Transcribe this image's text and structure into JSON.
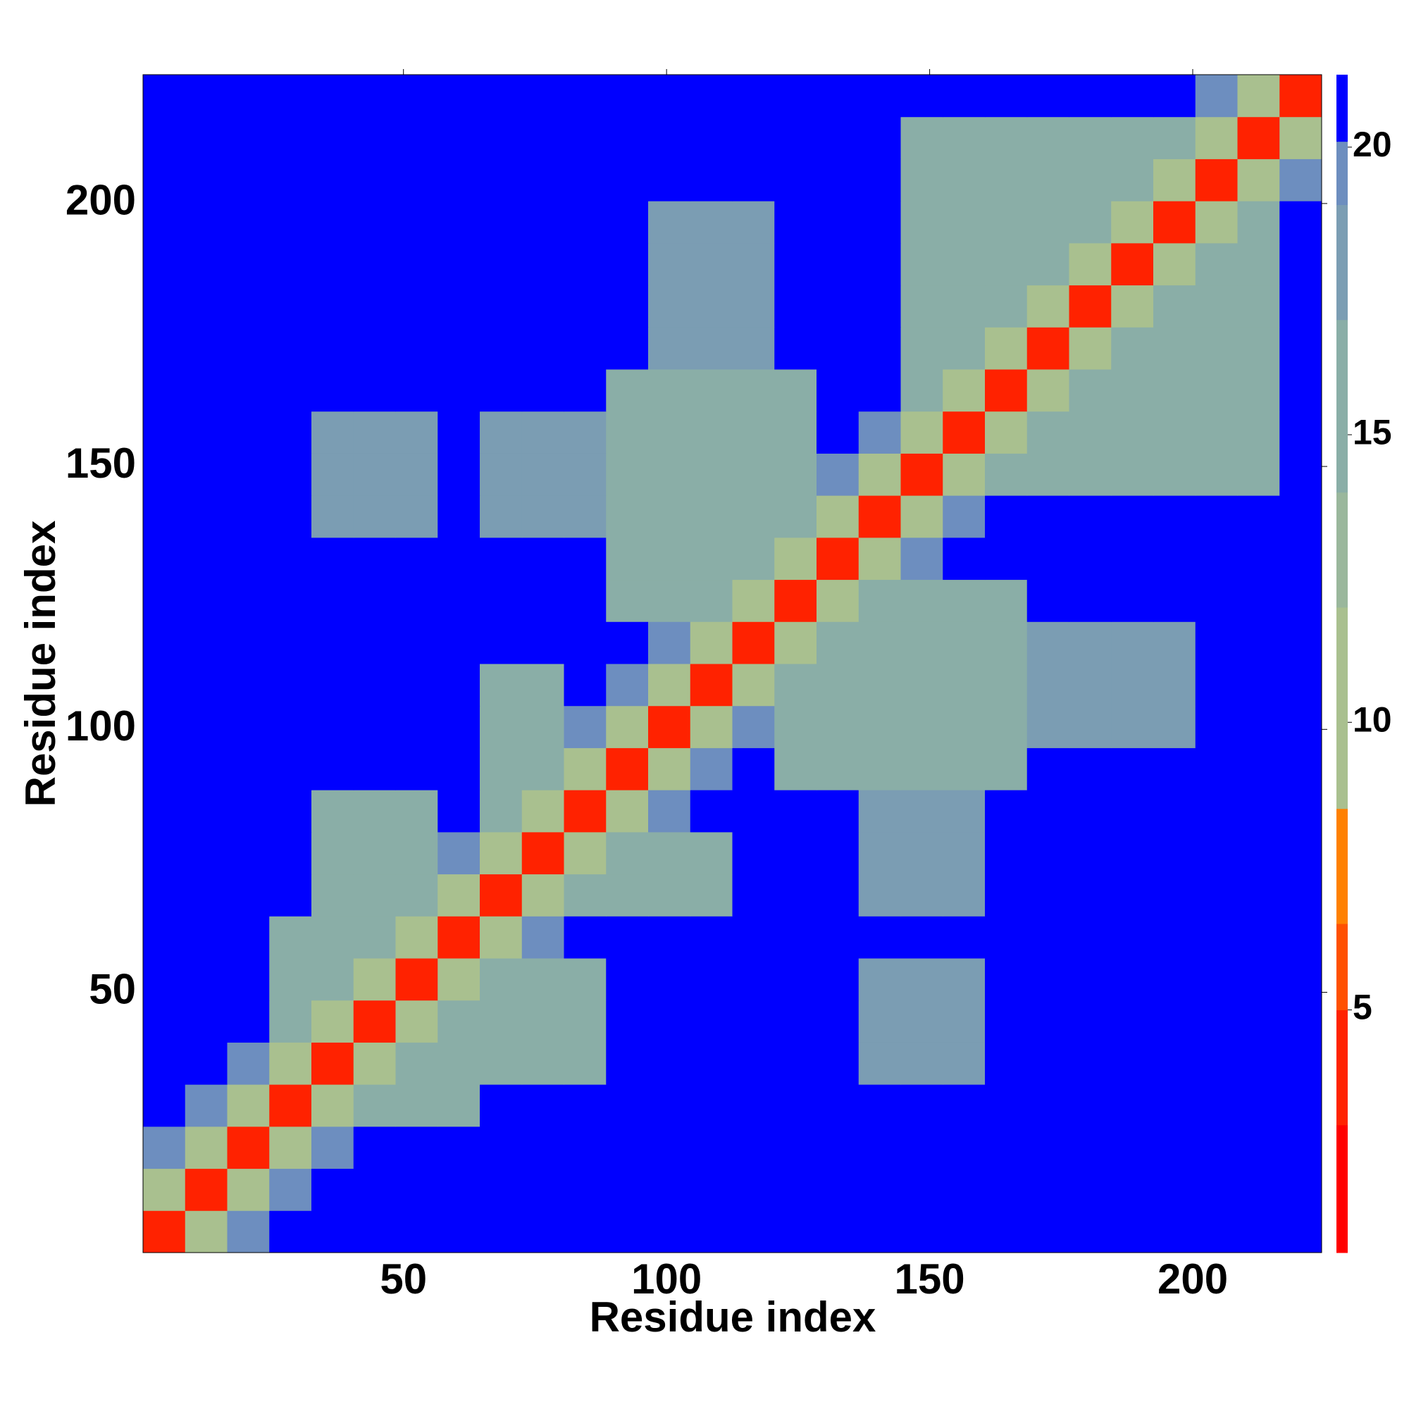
{
  "chart_data": {
    "type": "heatmap",
    "xlabel": "Residue index",
    "ylabel": "Residue index",
    "xlim": [
      0.5,
      224.5
    ],
    "ylim": [
      0.5,
      224.5
    ],
    "xticks": [
      50,
      100,
      150,
      200
    ],
    "yticks": [
      50,
      100,
      150,
      200
    ],
    "xbins": [
      0.5,
      8.5,
      16.5,
      24.5,
      32.5,
      40.5,
      48.5,
      56.5,
      64.5,
      72.5,
      80.5,
      88.5,
      96.5,
      104.5,
      112.5,
      120.5,
      128.5,
      136.5,
      144.5,
      152.5,
      160.5,
      168.5,
      176.5,
      184.5,
      192.5,
      200.5,
      208.5,
      216.5,
      224.5
    ],
    "ybins": [
      0.5,
      8.5,
      16.5,
      24.5,
      32.5,
      40.5,
      48.5,
      56.5,
      64.5,
      72.5,
      80.5,
      88.5,
      96.5,
      104.5,
      112.5,
      120.5,
      128.5,
      136.5,
      144.5,
      152.5,
      160.5,
      168.5,
      176.5,
      184.5,
      192.5,
      200.5,
      208.5,
      216.5,
      224.5
    ],
    "z": [
      [
        3,
        11,
        19,
        21,
        21,
        21,
        21,
        21,
        21,
        21,
        21,
        21,
        21,
        21,
        21,
        21,
        21,
        21,
        21,
        21,
        21,
        21,
        21,
        21,
        21,
        21,
        21,
        21
      ],
      [
        11,
        3,
        11,
        19,
        21,
        21,
        21,
        21,
        21,
        21,
        21,
        21,
        21,
        21,
        21,
        21,
        21,
        21,
        21,
        21,
        21,
        21,
        21,
        21,
        21,
        21,
        21,
        21
      ],
      [
        19,
        11,
        3,
        11,
        19,
        21,
        21,
        21,
        21,
        21,
        21,
        21,
        21,
        21,
        21,
        21,
        21,
        21,
        21,
        21,
        21,
        21,
        21,
        21,
        21,
        21,
        21,
        21
      ],
      [
        21,
        19,
        11,
        3,
        11,
        15,
        15,
        15,
        21,
        21,
        21,
        21,
        21,
        21,
        21,
        21,
        21,
        21,
        21,
        21,
        21,
        21,
        21,
        21,
        21,
        21,
        21,
        21
      ],
      [
        21,
        21,
        19,
        11,
        3,
        11,
        15,
        15,
        15,
        15,
        15,
        21,
        21,
        21,
        21,
        21,
        21,
        17,
        17,
        17,
        21,
        21,
        21,
        21,
        21,
        21,
        21,
        21
      ],
      [
        21,
        21,
        21,
        15,
        11,
        3,
        11,
        15,
        15,
        15,
        15,
        21,
        21,
        21,
        21,
        21,
        21,
        17,
        17,
        17,
        21,
        21,
        21,
        21,
        21,
        21,
        21,
        21
      ],
      [
        21,
        21,
        21,
        15,
        15,
        11,
        3,
        11,
        15,
        15,
        15,
        21,
        21,
        21,
        21,
        21,
        21,
        17,
        17,
        17,
        21,
        21,
        21,
        21,
        21,
        21,
        21,
        21
      ],
      [
        21,
        21,
        21,
        15,
        15,
        15,
        11,
        3,
        11,
        19,
        21,
        21,
        21,
        21,
        21,
        21,
        21,
        21,
        21,
        21,
        21,
        21,
        21,
        21,
        21,
        21,
        21,
        21
      ],
      [
        21,
        21,
        21,
        21,
        15,
        15,
        15,
        11,
        3,
        11,
        15,
        15,
        15,
        15,
        21,
        21,
        21,
        17,
        17,
        17,
        21,
        21,
        21,
        21,
        21,
        21,
        21,
        21
      ],
      [
        21,
        21,
        21,
        21,
        15,
        15,
        15,
        19,
        11,
        3,
        11,
        15,
        15,
        15,
        21,
        21,
        21,
        17,
        17,
        17,
        21,
        21,
        21,
        21,
        21,
        21,
        21,
        21
      ],
      [
        21,
        21,
        21,
        21,
        15,
        15,
        15,
        21,
        15,
        11,
        3,
        11,
        19,
        21,
        21,
        21,
        21,
        17,
        17,
        17,
        21,
        21,
        21,
        21,
        21,
        21,
        21,
        21
      ],
      [
        21,
        21,
        21,
        21,
        21,
        21,
        21,
        21,
        15,
        15,
        11,
        3,
        11,
        19,
        21,
        15,
        15,
        15,
        15,
        15,
        15,
        21,
        21,
        21,
        21,
        21,
        21,
        21
      ],
      [
        21,
        21,
        21,
        21,
        21,
        21,
        21,
        21,
        15,
        15,
        19,
        11,
        3,
        11,
        19,
        15,
        15,
        15,
        15,
        15,
        15,
        18,
        18,
        18,
        18,
        21,
        21,
        21
      ],
      [
        21,
        21,
        21,
        21,
        21,
        21,
        21,
        21,
        15,
        15,
        21,
        19,
        11,
        3,
        11,
        15,
        15,
        15,
        15,
        15,
        15,
        18,
        18,
        18,
        18,
        21,
        21,
        21
      ],
      [
        21,
        21,
        21,
        21,
        21,
        21,
        21,
        21,
        21,
        21,
        21,
        21,
        19,
        11,
        3,
        11,
        15,
        15,
        15,
        15,
        15,
        18,
        18,
        18,
        18,
        21,
        21,
        21
      ],
      [
        21,
        21,
        21,
        21,
        21,
        21,
        21,
        21,
        21,
        21,
        21,
        15,
        15,
        15,
        11,
        3,
        11,
        15,
        15,
        15,
        15,
        21,
        21,
        21,
        21,
        21,
        21,
        21
      ],
      [
        21,
        21,
        21,
        21,
        21,
        21,
        21,
        21,
        21,
        21,
        21,
        15,
        15,
        15,
        15,
        11,
        3,
        11,
        19,
        21,
        21,
        21,
        21,
        21,
        21,
        21,
        21,
        21
      ],
      [
        21,
        21,
        21,
        21,
        17,
        17,
        17,
        21,
        17,
        17,
        17,
        15,
        15,
        15,
        15,
        15,
        11,
        3,
        11,
        19,
        21,
        21,
        21,
        21,
        21,
        21,
        21,
        21
      ],
      [
        21,
        21,
        21,
        21,
        17,
        17,
        17,
        21,
        17,
        17,
        17,
        15,
        15,
        15,
        15,
        15,
        19,
        11,
        3,
        11,
        15,
        15,
        15,
        15,
        15,
        15,
        15,
        21
      ],
      [
        21,
        21,
        21,
        21,
        17,
        17,
        17,
        21,
        17,
        17,
        17,
        15,
        15,
        15,
        15,
        15,
        21,
        19,
        11,
        3,
        11,
        15,
        15,
        15,
        15,
        15,
        15,
        21
      ],
      [
        21,
        21,
        21,
        21,
        21,
        21,
        21,
        21,
        21,
        21,
        21,
        15,
        15,
        15,
        15,
        15,
        21,
        21,
        15,
        11,
        3,
        11,
        15,
        15,
        15,
        15,
        15,
        21
      ],
      [
        21,
        21,
        21,
        21,
        21,
        21,
        21,
        21,
        21,
        21,
        21,
        21,
        18,
        18,
        18,
        21,
        21,
        21,
        15,
        15,
        11,
        3,
        11,
        15,
        15,
        15,
        15,
        21
      ],
      [
        21,
        21,
        21,
        21,
        21,
        21,
        21,
        21,
        21,
        21,
        21,
        21,
        18,
        18,
        18,
        21,
        21,
        21,
        15,
        15,
        15,
        11,
        3,
        11,
        15,
        15,
        15,
        21
      ],
      [
        21,
        21,
        21,
        21,
        21,
        21,
        21,
        21,
        21,
        21,
        21,
        21,
        18,
        18,
        18,
        21,
        21,
        21,
        15,
        15,
        15,
        15,
        11,
        3,
        11,
        15,
        15,
        21
      ],
      [
        21,
        21,
        21,
        21,
        21,
        21,
        21,
        21,
        21,
        21,
        21,
        21,
        18,
        18,
        18,
        21,
        21,
        21,
        15,
        15,
        15,
        15,
        15,
        11,
        3,
        11,
        15,
        21
      ],
      [
        21,
        21,
        21,
        21,
        21,
        21,
        21,
        21,
        21,
        21,
        21,
        21,
        21,
        21,
        21,
        21,
        21,
        21,
        15,
        15,
        15,
        15,
        15,
        15,
        11,
        3,
        11,
        19
      ],
      [
        21,
        21,
        21,
        21,
        21,
        21,
        21,
        21,
        21,
        21,
        21,
        21,
        21,
        21,
        21,
        21,
        21,
        21,
        15,
        15,
        15,
        15,
        15,
        15,
        15,
        11,
        3,
        11
      ],
      [
        21,
        21,
        21,
        21,
        21,
        21,
        21,
        21,
        21,
        21,
        21,
        21,
        21,
        21,
        21,
        21,
        21,
        21,
        21,
        21,
        21,
        21,
        21,
        21,
        21,
        19,
        11,
        3
      ]
    ],
    "clim": [
      0.78,
      21.26
    ],
    "cticks": [
      5,
      10,
      15,
      20
    ],
    "levels": [
      {
        "value": 0.78,
        "color": "#ff0000"
      },
      {
        "value": 3,
        "color": "#ff2200"
      },
      {
        "value": 5,
        "color": "#ff5000"
      },
      {
        "value": 6.5,
        "color": "#ff8000"
      },
      {
        "value": 8.5,
        "color": "#a9c08f"
      },
      {
        "value": 12,
        "color": "#9ab79c"
      },
      {
        "value": 14,
        "color": "#8aaea7"
      },
      {
        "value": 17,
        "color": "#7b9db3"
      },
      {
        "value": 19,
        "color": "#6d8ebf"
      },
      {
        "value": 20.1,
        "color": "#0000ff"
      }
    ]
  }
}
